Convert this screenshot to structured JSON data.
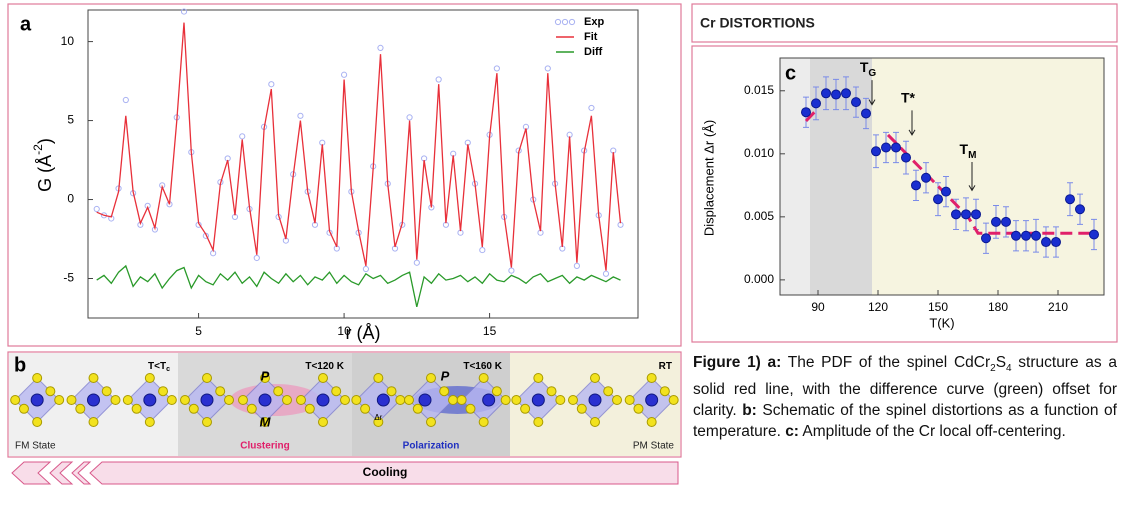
{
  "header": "Cr DISTORTIONS",
  "chart_data": [
    {
      "type": "line",
      "label": "a",
      "x": [
        1.5,
        1.75,
        2,
        2.25,
        2.5,
        2.75,
        3,
        3.25,
        3.5,
        3.75,
        4,
        4.25,
        4.5,
        4.75,
        5,
        5.25,
        5.5,
        5.75,
        6,
        6.25,
        6.5,
        6.75,
        7,
        7.25,
        7.5,
        7.75,
        8,
        8.25,
        8.5,
        8.75,
        9,
        9.25,
        9.5,
        9.75,
        10,
        10.25,
        10.5,
        10.75,
        11,
        11.25,
        11.5,
        11.75,
        12,
        12.25,
        12.5,
        12.75,
        13,
        13.25,
        13.5,
        13.75,
        14,
        14.25,
        14.5,
        14.75,
        15,
        15.25,
        15.5,
        15.75,
        16,
        16.25,
        16.5,
        16.75,
        17,
        17.25,
        17.5,
        17.75,
        18,
        18.25,
        18.5,
        18.75,
        19,
        19.25,
        19.5
      ],
      "series": [
        {
          "name": "Exp",
          "color": "#a9b2f2",
          "marker": "circle",
          "values": [
            -0.6,
            -1,
            -1.2,
            0.7,
            6.3,
            0.4,
            -1.6,
            -0.4,
            -1.9,
            0.9,
            -0.3,
            5.2,
            11.9,
            3,
            -1.6,
            -2.3,
            -3.4,
            1.1,
            2.6,
            -1.1,
            4,
            -0.6,
            -3.7,
            4.6,
            7.3,
            -1.1,
            -2.6,
            1.6,
            5.3,
            0.5,
            -1.6,
            3.6,
            -2.1,
            -3.1,
            7.9,
            0.5,
            -2.1,
            -4.4,
            2.1,
            9.6,
            1,
            -3.1,
            -1.6,
            5.2,
            -4,
            2.6,
            -0.5,
            7.6,
            -1.6,
            2.9,
            -2.1,
            3.6,
            1,
            -3.2,
            4.1,
            8.3,
            -1.1,
            -4.5,
            3.1,
            4.6,
            0,
            -2.1,
            8.3,
            1,
            -3.1,
            4.1,
            -4.2,
            3.1,
            5.8,
            -1,
            -4.7,
            3.1,
            -1.6
          ]
        },
        {
          "name": "Fit",
          "color": "#e8303a",
          "values": [
            -0.8,
            -1,
            -1.1,
            0.5,
            5.3,
            0.5,
            -1.5,
            -0.5,
            -1.8,
            0.8,
            -0.3,
            5,
            11.2,
            3,
            -1.5,
            -2.2,
            -3.2,
            1,
            2.5,
            -1,
            3.8,
            -0.5,
            -3.5,
            4.5,
            7,
            -1,
            -2.5,
            1.5,
            5,
            0.5,
            -1.5,
            3.5,
            -2,
            -3,
            7.6,
            0.5,
            -2,
            -4.2,
            2,
            9.2,
            1,
            -3,
            -1.5,
            5,
            -3.8,
            2.5,
            -0.5,
            7.3,
            -1.5,
            2.8,
            -2,
            3.5,
            1,
            -3,
            4,
            8,
            -1,
            -4.3,
            3,
            4.5,
            0,
            -2,
            8,
            1,
            -3,
            4,
            -4,
            3,
            5.3,
            -1,
            -4.5,
            3,
            -1.5
          ]
        },
        {
          "name": "Diff",
          "color": "#2a9a2a",
          "values": [
            -5.1,
            -4.8,
            -5.3,
            -4.6,
            -4.2,
            -5.5,
            -4.9,
            -5.2,
            -4.7,
            -5.6,
            -5,
            -4.5,
            -4.3,
            -5.6,
            -4.8,
            -5.2,
            -5.4,
            -4.7,
            -5.1,
            -4.6,
            -5.3,
            -4.9,
            -5.5,
            -4.6,
            -5,
            -5.3,
            -4.7,
            -5.2,
            -4.8,
            -5.4,
            -4.9,
            -5.1,
            -4.6,
            -5.3,
            -4.8,
            -5.2,
            -5.4,
            -4.7,
            -5,
            -4.8,
            -5.3,
            -5.1,
            -4.8,
            -4.6,
            -6.8,
            -4.9,
            -5.3,
            -4.7,
            -5.1,
            -5,
            -4.8,
            -5.2,
            -4.9,
            -5.3,
            -4.7,
            -5.1,
            -5.2,
            -4.8,
            -5,
            -5.3,
            -4.9,
            -4.7,
            -5.2,
            -5,
            -4.8,
            -5.3,
            -4.9,
            -5.1,
            -4.8,
            -5,
            -5.2,
            -4.9,
            -5.1
          ]
        }
      ],
      "xlim": [
        1.2,
        20.1
      ],
      "ylim": [
        -7.5,
        12
      ],
      "xticks": [
        5,
        10,
        15
      ],
      "yticks": [
        -5,
        0,
        5,
        10
      ],
      "xlabel": "r (Å)",
      "ylabel": "G (Å",
      "ylabel_sup": "-2",
      "ylabel_end": ")",
      "legend": "upper right"
    },
    {
      "type": "scatter",
      "label": "c",
      "color": "#1a2fd0",
      "x": [
        84,
        89,
        94,
        99,
        104,
        109,
        114,
        119,
        124,
        129,
        134,
        139,
        144,
        150,
        154,
        159,
        164,
        169,
        174,
        179,
        184,
        189,
        194,
        199,
        204,
        209,
        216,
        221,
        228
      ],
      "values": [
        0.0133,
        0.014,
        0.0148,
        0.0147,
        0.0148,
        0.0141,
        0.0132,
        0.0102,
        0.0105,
        0.0105,
        0.0097,
        0.0075,
        0.0081,
        0.0064,
        0.007,
        0.0052,
        0.0052,
        0.0052,
        0.0033,
        0.0046,
        0.0046,
        0.0035,
        0.0035,
        0.0035,
        0.003,
        0.003,
        0.0064,
        0.0056,
        0.0036
      ],
      "errors": [
        0.0012,
        0.0013,
        0.0013,
        0.0012,
        0.0013,
        0.0012,
        0.0012,
        0.0013,
        0.0012,
        0.0012,
        0.0013,
        0.0012,
        0.0012,
        0.0013,
        0.0012,
        0.0012,
        0.0013,
        0.0012,
        0.0012,
        0.0013,
        0.0012,
        0.0012,
        0.0012,
        0.0013,
        0.0012,
        0.0012,
        0.0013,
        0.0012,
        0.0012
      ],
      "fit": {
        "color": "#e0206a",
        "x": [
          84,
          90,
          122,
          125,
          165,
          170,
          230
        ],
        "values": [
          0.0126,
          0.0136,
          null,
          0.0115,
          0.005,
          0.0037,
          0.0037
        ]
      },
      "regions": [
        {
          "xlim": [
            71,
            86
          ],
          "color": "#ececec"
        },
        {
          "xlim": [
            86,
            117
          ],
          "color": "#d9d9d9"
        },
        {
          "xlim": [
            117,
            233
          ],
          "color": "#f6f4e0"
        }
      ],
      "annotations": [
        {
          "text": "T",
          "sub": "G",
          "x": 117,
          "y": 0.0168,
          "arrow_to": 0.0139
        },
        {
          "text": "T*",
          "x": 137,
          "y": 0.0144,
          "arrow_to": 0.0115
        },
        {
          "text": "T",
          "sub": "M",
          "x": 167,
          "y": 0.0103,
          "arrow_to": 0.0071
        }
      ],
      "xlim": [
        71,
        233
      ],
      "ylim": [
        -0.0012,
        0.0176
      ],
      "xticks": [
        90,
        120,
        150,
        180,
        210
      ],
      "yticks": [
        {
          "value": 0,
          "label": "0.000"
        },
        0.005,
        {
          "value": 0.01,
          "label": "0.010"
        },
        0.015
      ],
      "xlabel": "T(K)",
      "ylabel": "Displacement Δr (Å)"
    }
  ],
  "schematic": {
    "label": "b",
    "arrow": "Cooling",
    "panels": [
      {
        "temp": "T<T",
        "temp_sub": "c",
        "state": "FM State"
      },
      {
        "temp": "T<120 K",
        "state": "Clustering",
        "vectors": [
          "P",
          "M"
        ]
      },
      {
        "temp": "T<160 K",
        "state": "Polarization",
        "vectors": [
          "P"
        ],
        "shift": "Δr"
      },
      {
        "temp": "RT",
        "state": "PM State"
      }
    ]
  },
  "caption": [
    {
      "text": "Figure 1) a:",
      "bold": true
    },
    {
      "text": " The PDF of the spinel CdCr"
    },
    {
      "text": "2",
      "sub": true
    },
    {
      "text": "S"
    },
    {
      "text": "4",
      "sub": true
    },
    {
      "text": " structure as a solid red line, with the difference curve (green) offset for clarity. "
    },
    {
      "text": "b:",
      "bold": true
    },
    {
      "text": " Schematic of the spinel distortions as a function of temperature. "
    },
    {
      "text": "c:",
      "bold": true
    },
    {
      "text": " Amplitude of the Cr local off-centering."
    }
  ]
}
